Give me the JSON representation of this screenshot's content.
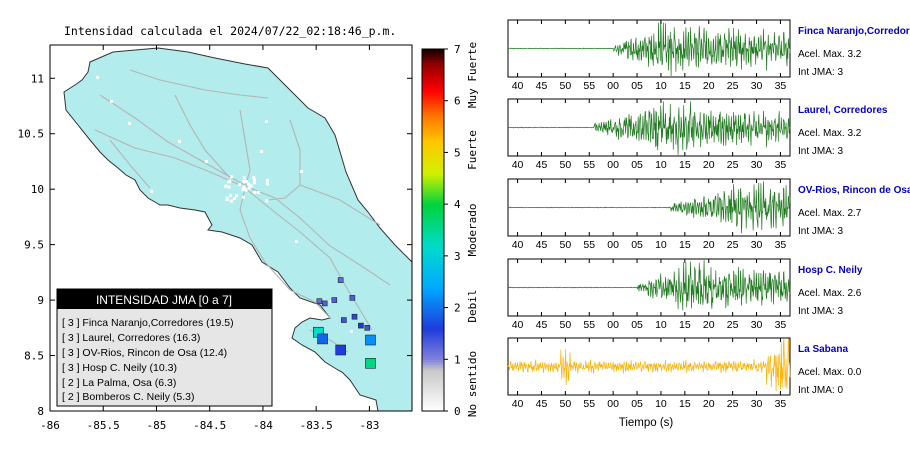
{
  "title": "Intensidad calculada el 2024/07/22_02:18:46_p.m.",
  "colors": {
    "land": "#b3ecec",
    "road": "#b4b4b4",
    "border": "#333333",
    "trace_green": "#1f7a1f",
    "trace_orange": "#ffb000",
    "station_name": "#0000cc"
  },
  "colorbar": {
    "ticks": [
      "0",
      "1",
      "2",
      "3",
      "4",
      "5",
      "6",
      "7"
    ],
    "labels": [
      "No sentido",
      "Debil",
      "Moderado",
      "Fuerte",
      "Muy Fuerte"
    ]
  },
  "legend": {
    "title": "INTENSIDAD JMA [0 a 7]",
    "items": [
      "[ 3 ]  Finca Naranjo,Corredores (19.5)",
      "[ 3 ]  Laurel, Corredores (16.3)",
      "[ 3 ]  OV-Rios, Rincon de Osa (12.4)",
      "[ 3 ]  Hosp C. Neily (10.3)",
      "[ 2 ]  La Palma, Osa (6.3)",
      "[ 2 ]  Bomberos C. Neily (5.3)"
    ]
  },
  "chart_data": [
    {
      "type": "scatter",
      "title": "Intensidad calculada el 2024/07/22_02:18:46_p.m.",
      "xlim": [
        -86,
        -82.6
      ],
      "ylim": [
        8,
        11.3
      ],
      "x_ticks": [
        "-86",
        "-85.5",
        "-85",
        "-84.5",
        "-84",
        "-83.5",
        "-83"
      ],
      "y_ticks": [
        "8",
        "8.5",
        "9",
        "9.5",
        "10",
        "10.5",
        "11"
      ],
      "points": [
        {
          "x": -83.48,
          "y": 8.71,
          "intensity": 3.2,
          "size": "large"
        },
        {
          "x": -83.44,
          "y": 8.65,
          "intensity": 1.9,
          "size": "large"
        },
        {
          "x": -83.27,
          "y": 8.55,
          "intensity": 1.6,
          "size": "large"
        },
        {
          "x": -82.99,
          "y": 8.64,
          "intensity": 2.2,
          "size": "large"
        },
        {
          "x": -82.99,
          "y": 8.43,
          "intensity": 3.6,
          "size": "large"
        },
        {
          "x": -83.08,
          "y": 8.77,
          "intensity": 1.6,
          "size": "small"
        },
        {
          "x": -83.24,
          "y": 8.82,
          "intensity": 1.4,
          "size": "small"
        },
        {
          "x": -83.14,
          "y": 8.85,
          "intensity": 1.5,
          "size": "small"
        },
        {
          "x": -83.16,
          "y": 9.02,
          "intensity": 1.3,
          "size": "small"
        },
        {
          "x": -83.33,
          "y": 9.0,
          "intensity": 1.3,
          "size": "small"
        },
        {
          "x": -83.47,
          "y": 8.99,
          "intensity": 1.2,
          "size": "small"
        },
        {
          "x": -83.42,
          "y": 8.97,
          "intensity": 1.3,
          "size": "small"
        },
        {
          "x": -83.27,
          "y": 9.18,
          "intensity": 1.2,
          "size": "small"
        },
        {
          "x": -83.02,
          "y": 8.75,
          "intensity": 1.4,
          "size": "small"
        }
      ]
    },
    {
      "type": "line",
      "xlabel": "Tiempo (s)",
      "x_ticks": [
        "40",
        "45",
        "50",
        "55",
        "00",
        "05",
        "10",
        "15",
        "20",
        "25",
        "30",
        "35"
      ],
      "series": [
        {
          "name": "Finca Naranjo,Corredores",
          "pga_label": "Acel. Max. 3.2",
          "jma_label": "Int JMA: 3",
          "onset_s": 0,
          "peak_s": 10,
          "color": "#1f7a1f"
        },
        {
          "name": "Laurel, Corredores",
          "pga_label": "Acel. Max. 3.2",
          "jma_label": "Int JMA: 3",
          "onset_s": -4,
          "peak_s": 11,
          "color": "#1f7a1f"
        },
        {
          "name": "OV-Rios, Rincon de Osa",
          "pga_label": "Acel. Max. 2.7",
          "jma_label": "Int JMA: 3",
          "onset_s": 12,
          "peak_s": 30,
          "color": "#1f7a1f"
        },
        {
          "name": "Hosp C. Neily",
          "pga_label": "Acel. Max. 2.6",
          "jma_label": "Int JMA: 3",
          "onset_s": 5,
          "peak_s": 17,
          "color": "#1f7a1f"
        },
        {
          "name": "La Sabana",
          "pga_label": "Acel. Max. 0.0",
          "jma_label": "Int JMA: 0",
          "onset_s": -20,
          "peak_s": 36,
          "color": "#ffb000"
        }
      ]
    }
  ]
}
